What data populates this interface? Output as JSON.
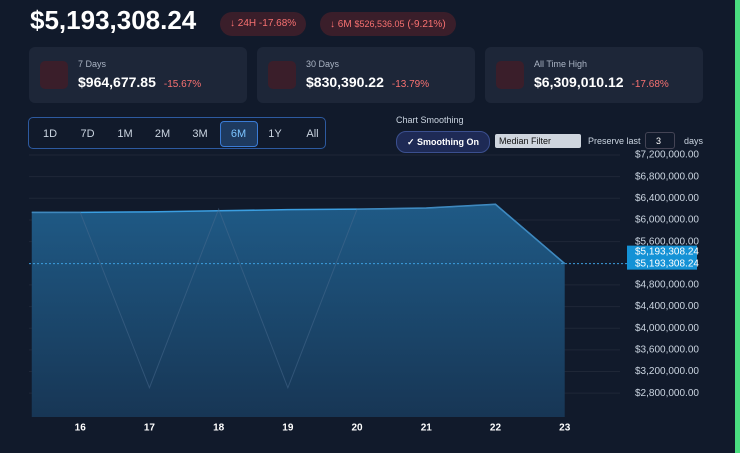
{
  "header": {
    "value": "$5,193,308.24",
    "badges": [
      {
        "period": "24H",
        "change": "-17.68%"
      },
      {
        "period": "6M",
        "amount": "$526,536.05",
        "change": "(-9.21%)"
      }
    ]
  },
  "cards": [
    {
      "label": "7 Days",
      "value": "$964,677.85",
      "change": "-15.67%"
    },
    {
      "label": "30 Days",
      "value": "$830,390.22",
      "change": "-13.79%"
    },
    {
      "label": "All Time High",
      "value": "$6,309,010.12",
      "change": "-17.68%"
    }
  ],
  "timeframes": {
    "options": [
      "1D",
      "7D",
      "1M",
      "2M",
      "3M",
      "6M",
      "1Y",
      "All"
    ],
    "active": "6M"
  },
  "smoothing": {
    "title": "Chart Smoothing",
    "button": "Smoothing On",
    "method": "Median Filter",
    "preserve_label": "Preserve last",
    "preserve_value": "3",
    "preserve_unit": "days"
  },
  "chart_data": {
    "type": "area",
    "x": [
      15.3,
      16,
      17,
      18,
      19,
      20,
      21,
      22,
      23
    ],
    "xlim": [
      15.26,
      23.9
    ],
    "xticks": [
      16,
      17,
      18,
      19,
      20,
      21,
      22,
      23
    ],
    "series": [
      {
        "color": "#3b9ee0",
        "values": [
          6140000,
          6140000,
          6150000,
          6170000,
          6190000,
          6200000,
          6220000,
          6290000,
          5193308.24
        ]
      },
      {
        "color": "#4a6b8f",
        "values": [
          6140000,
          6140000,
          2900000,
          6200000,
          2900000,
          6200000,
          6220000,
          6290000,
          5193308.24
        ]
      }
    ],
    "ylim": [
      2360000,
      7200000
    ],
    "yticks": [
      {
        "value": 7200000,
        "label": "$7,200,000.00"
      },
      {
        "value": 6800000,
        "label": "$6,800,000.00"
      },
      {
        "value": 6400000,
        "label": "$6,400,000.00"
      },
      {
        "value": 6000000,
        "label": "$6,000,000.00"
      },
      {
        "value": 5600000,
        "label": "$5,600,000.00"
      },
      {
        "value": 4800000,
        "label": "$4,800,000.00"
      },
      {
        "value": 4400000,
        "label": "$4,400,000.00"
      },
      {
        "value": 4000000,
        "label": "$4,000,000.00"
      },
      {
        "value": 3600000,
        "label": "$3,600,000.00"
      },
      {
        "value": 3200000,
        "label": "$3,200,000.00"
      },
      {
        "value": 2800000,
        "label": "$2,800,000.00"
      }
    ],
    "grid": true,
    "current_value": 5193308.24,
    "current_label": "$5,193,308.24"
  }
}
